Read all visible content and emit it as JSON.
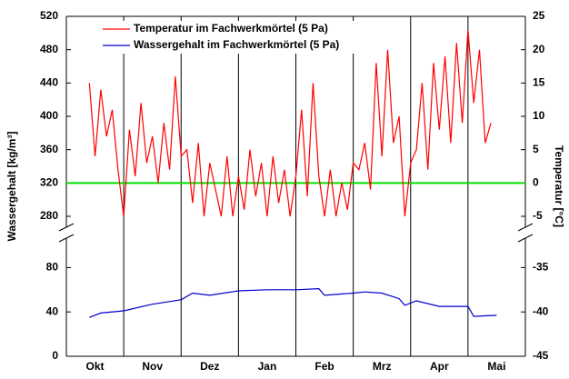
{
  "chart_data": {
    "type": "line",
    "y_label": "Wassergehalt [kg/m³]",
    "y2_label": "Temperatur [°C]",
    "categories": [
      "Okt",
      "Nov",
      "Dez",
      "Jan",
      "Feb",
      "Mrz",
      "Apr",
      "Mai"
    ],
    "xlim": [
      0,
      8
    ],
    "xticks": [
      1,
      2,
      3,
      4,
      5,
      6,
      7
    ],
    "ylim": [
      0,
      520
    ],
    "ybreak": [
      100,
      280
    ],
    "yticks": [
      0,
      40,
      80,
      280,
      320,
      360,
      400,
      440,
      480,
      520
    ],
    "y2lim": [
      -45,
      25
    ],
    "y2break": [
      -32.5,
      -5
    ],
    "y2ticks": [
      -45,
      -40,
      -35,
      -5,
      0,
      5,
      10,
      15,
      20,
      25
    ],
    "reference_line": {
      "value": 0,
      "axis": "y2",
      "color": "#00e000"
    },
    "legend": "upper left",
    "series": [
      {
        "name": "Temperatur im Fachwerkmörtel (5 Pa)",
        "color": "#ff0000",
        "axis": "y2",
        "x": [
          0.4,
          0.5,
          0.6,
          0.7,
          0.8,
          0.9,
          1.0,
          1.1,
          1.2,
          1.3,
          1.4,
          1.5,
          1.6,
          1.7,
          1.8,
          1.9,
          2.0,
          2.1,
          2.2,
          2.3,
          2.4,
          2.5,
          2.6,
          2.7,
          2.8,
          2.9,
          3.0,
          3.1,
          3.2,
          3.3,
          3.4,
          3.5,
          3.6,
          3.7,
          3.8,
          3.9,
          4.0,
          4.1,
          4.2,
          4.3,
          4.4,
          4.5,
          4.6,
          4.7,
          4.8,
          4.9,
          5.0,
          5.1,
          5.2,
          5.3,
          5.4,
          5.5,
          5.6,
          5.7,
          5.8,
          5.9,
          6.0,
          6.1,
          6.2,
          6.3,
          6.4,
          6.5,
          6.6,
          6.7,
          6.8,
          6.9,
          7.0,
          7.1,
          7.2,
          7.3,
          7.4
        ],
        "values": [
          15,
          4,
          14,
          7,
          11,
          2,
          -5,
          8,
          1,
          12,
          3,
          7,
          0,
          9,
          2,
          16,
          4,
          5,
          -3,
          6,
          -5,
          3,
          -1,
          -5,
          4,
          -5,
          1,
          -4,
          5,
          -2,
          3,
          -5,
          4,
          -3,
          2,
          -5,
          1,
          11,
          -2,
          15,
          1,
          -5,
          2,
          -5,
          0,
          -4,
          3,
          2,
          6,
          -1,
          18,
          4,
          20,
          6,
          10,
          -5,
          3,
          5,
          15,
          2,
          18,
          8,
          19,
          6,
          21,
          9,
          23,
          12,
          20,
          6,
          9
        ]
      },
      {
        "name": "Wassergehalt im Fachwerkmörtel (5 Pa)",
        "color": "#0000cc",
        "axis": "y",
        "x": [
          0.4,
          0.6,
          1.0,
          1.5,
          2.0,
          2.2,
          2.5,
          3.0,
          3.5,
          4.0,
          4.4,
          4.5,
          5.0,
          5.2,
          5.5,
          5.8,
          5.9,
          6.1,
          6.5,
          7.0,
          7.1,
          7.5
        ],
        "values": [
          35,
          39,
          41,
          47,
          51,
          57,
          55,
          59,
          60,
          60,
          61,
          55,
          57,
          58,
          57,
          52,
          46,
          50,
          45,
          45,
          36,
          37
        ]
      }
    ]
  }
}
